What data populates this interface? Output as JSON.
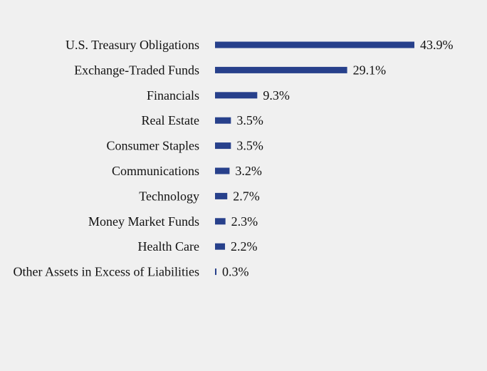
{
  "chart_data": {
    "type": "bar",
    "orientation": "horizontal",
    "categories": [
      "U.S. Treasury Obligations",
      "Exchange-Traded Funds",
      "Financials",
      "Real Estate",
      "Consumer Staples",
      "Communications",
      "Technology",
      "Money Market Funds",
      "Health Care",
      "Other Assets in Excess of Liabilities"
    ],
    "values": [
      43.9,
      29.1,
      9.3,
      3.5,
      3.5,
      3.2,
      2.7,
      2.3,
      2.2,
      0.3
    ],
    "value_labels": [
      "43.9%",
      "29.1%",
      "9.3%",
      "3.5%",
      "3.5%",
      "3.2%",
      "2.7%",
      "2.3%",
      "2.2%",
      "0.3%"
    ],
    "bar_color": "#27408b",
    "background_color": "#f0f0f0",
    "grid": false,
    "legend": "none",
    "xlim": [
      0,
      43.9
    ]
  }
}
